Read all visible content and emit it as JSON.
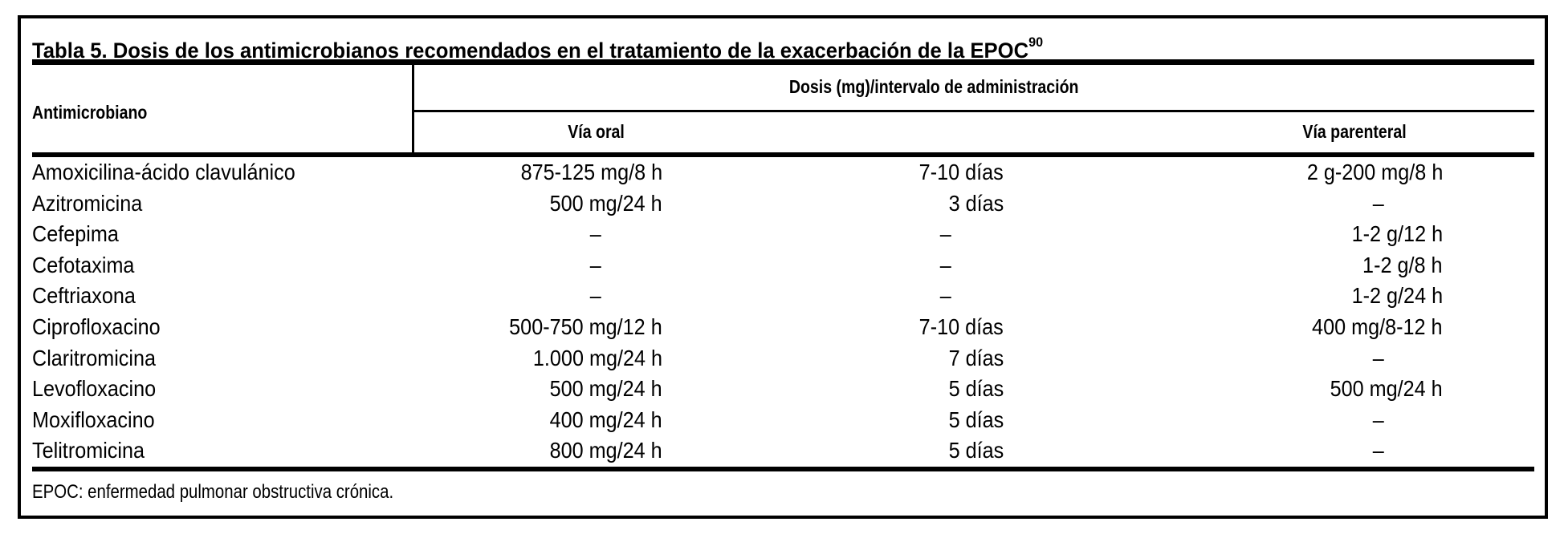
{
  "title": {
    "text": "Tabla 5. Dosis de los antimicrobianos recomendados en el tratamiento de la exacerbación de la EPOC",
    "superscript": "90"
  },
  "table": {
    "empty_marker": "–",
    "col1_header": "Antimicrobiano",
    "group_header": "Dosis (mg)/intervalo de administración",
    "subheader_oral": "Vía oral",
    "subheader_parenteral": "Vía parenteral",
    "rows": [
      {
        "antimicrobial": "Amoxicilina-ácido clavulánico",
        "oral": "875-125 mg/8 h",
        "duration": "7-10 días",
        "parenteral": "2 g-200 mg/8 h"
      },
      {
        "antimicrobial": "Azitromicina",
        "oral": "500 mg/24 h",
        "duration": "3 días",
        "parenteral": "–"
      },
      {
        "antimicrobial": "Cefepima",
        "oral": "–",
        "duration": "–",
        "parenteral": "1-2 g/12 h"
      },
      {
        "antimicrobial": "Cefotaxima",
        "oral": "–",
        "duration": "–",
        "parenteral": "1-2 g/8 h"
      },
      {
        "antimicrobial": "Ceftriaxona",
        "oral": "–",
        "duration": "–",
        "parenteral": "1-2 g/24 h"
      },
      {
        "antimicrobial": "Ciprofloxacino",
        "oral": "500-750 mg/12 h",
        "duration": "7-10 días",
        "parenteral": "400 mg/8-12 h"
      },
      {
        "antimicrobial": "Claritromicina",
        "oral": "1.000 mg/24 h",
        "duration": "7 días",
        "parenteral": "–"
      },
      {
        "antimicrobial": "Levofloxacino",
        "oral": "500 mg/24 h",
        "duration": "5 días",
        "parenteral": "500 mg/24 h"
      },
      {
        "antimicrobial": "Moxifloxacino",
        "oral": "400 mg/24 h",
        "duration": "5 días",
        "parenteral": "–"
      },
      {
        "antimicrobial": "Telitromicina",
        "oral": "800 mg/24 h",
        "duration": "5 días",
        "parenteral": "–"
      }
    ]
  },
  "footnote": "EPOC: enfermedad pulmonar obstructiva crónica.",
  "colors": {
    "text": "#000000",
    "background": "#ffffff",
    "rules": "#000000"
  }
}
